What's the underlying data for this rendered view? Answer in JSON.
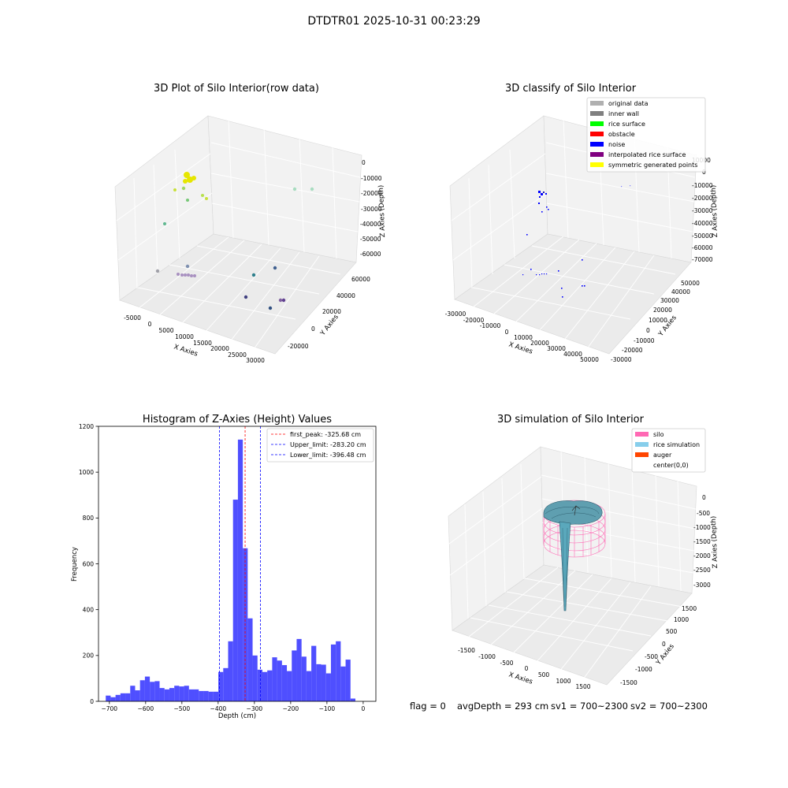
{
  "suptitle": "DTDTR01 2025-10-31 00:23:29",
  "footer": {
    "flag": "flag = 0",
    "avg": "avgDepth = 293 cm",
    "sv1": "sv1 = 700~2300",
    "sv2": "sv2 = 700~2300"
  },
  "colors": {
    "original": "#b0b0b0",
    "inner_wall": "#808080",
    "rice_surface": "#00ff00",
    "obstacle": "#ff0000",
    "noise": "#0000ff",
    "interp": "#800080",
    "symmetric": "#ffff00",
    "hist_bar": "#4b4bff",
    "silo": "#ff69b4",
    "rice_sim": "#87ceeb",
    "auger": "#ff4500"
  },
  "chart_data": [
    {
      "type": "scatter",
      "title": "3D Plot of Silo Interior(row data)",
      "xlabel": "X Axies",
      "ylabel": "Y Axies",
      "zlabel": "Z Axies (Depth)",
      "xticks": [
        "-5000",
        "0",
        "5000",
        "10000",
        "15000",
        "20000",
        "25000",
        "30000"
      ],
      "yticks": [
        "-20000",
        "0",
        "20000",
        "40000",
        "60000"
      ],
      "zticks": [
        "0",
        "-10000",
        "-20000",
        "-30000",
        "-40000",
        "-50000",
        "-60000"
      ],
      "point_colors": [
        "#e6e600",
        "#c8e03c",
        "#a0d860",
        "#78c878",
        "#60b890",
        "#4fa6a0",
        "#7fb0b8",
        "#a890c0",
        "#8060a0",
        "#406090",
        "#2e7f8c"
      ]
    },
    {
      "type": "scatter",
      "title": "3D classify of Silo Interior",
      "xlabel": "X Axies",
      "ylabel": "Y Axies",
      "zlabel": "Z Axies (Depth)",
      "xticks": [
        "-30000",
        "-20000",
        "-10000",
        "0",
        "10000",
        "20000",
        "30000",
        "40000",
        "50000"
      ],
      "yticks": [
        "-30000",
        "-20000",
        "-10000",
        "0",
        "10000",
        "20000",
        "30000",
        "40000",
        "50000"
      ],
      "zticks": [
        "10000",
        "0",
        "-10000",
        "-20000",
        "-30000",
        "-40000",
        "-50000",
        "-60000",
        "-70000"
      ],
      "legend": [
        "original data",
        "inner wall",
        "rice surface",
        "obstacle",
        "noise",
        "interpolated rice surface",
        "symmetric generated points"
      ],
      "legend_placement": "top-right"
    },
    {
      "type": "bar",
      "title": "Histogram of Z-Axies (Height) Values",
      "xlabel": "Depth (cm)",
      "ylabel": "Frequency",
      "xlim": [
        -730,
        35
      ],
      "ylim": [
        0,
        1200
      ],
      "xticks": [
        -700,
        -600,
        -500,
        -400,
        -300,
        -200,
        -100,
        0
      ],
      "yticks": [
        0,
        200,
        400,
        600,
        800,
        1000,
        1200
      ],
      "bin_start": -710,
      "bin_width": 13.5,
      "values": [
        25,
        18,
        28,
        35,
        35,
        68,
        48,
        92,
        108,
        85,
        88,
        58,
        52,
        58,
        68,
        65,
        68,
        52,
        52,
        45,
        45,
        42,
        42,
        128,
        145,
        262,
        880,
        1142,
        668,
        362,
        200,
        138,
        128,
        135,
        192,
        178,
        158,
        132,
        222,
        272,
        195,
        132,
        242,
        162,
        160,
        122,
        248,
        262,
        152,
        182,
        12
      ],
      "lines": [
        {
          "label": "first_peak: -325.68 cm",
          "x": -325.68,
          "color": "#ff0000"
        },
        {
          "label": "Upper_limit: -283.20 cm",
          "x": -283.2,
          "color": "#0000ff"
        },
        {
          "label": "Lower_limit: -396.48 cm",
          "x": -396.48,
          "color": "#0000ff"
        }
      ],
      "legend_placement": "top-right"
    },
    {
      "type": "surface",
      "title": "3D simulation of Silo Interior",
      "xlabel": "X Axies",
      "ylabel": "Y Axies",
      "zlabel": "Z Axies (Depth)",
      "xticks": [
        "-1500",
        "-1000",
        "-500",
        "0",
        "500",
        "1000",
        "1500"
      ],
      "yticks": [
        "-1500",
        "-1000",
        "-500",
        "0",
        "500",
        "1000",
        "1500"
      ],
      "zticks": [
        "0",
        "-500",
        "-1000",
        "-1500",
        "-2000",
        "-2500",
        "-3000"
      ],
      "legend": [
        "silo",
        "rice simulation",
        "auger",
        "center(0,0)"
      ],
      "legend_placement": "top-right"
    }
  ]
}
